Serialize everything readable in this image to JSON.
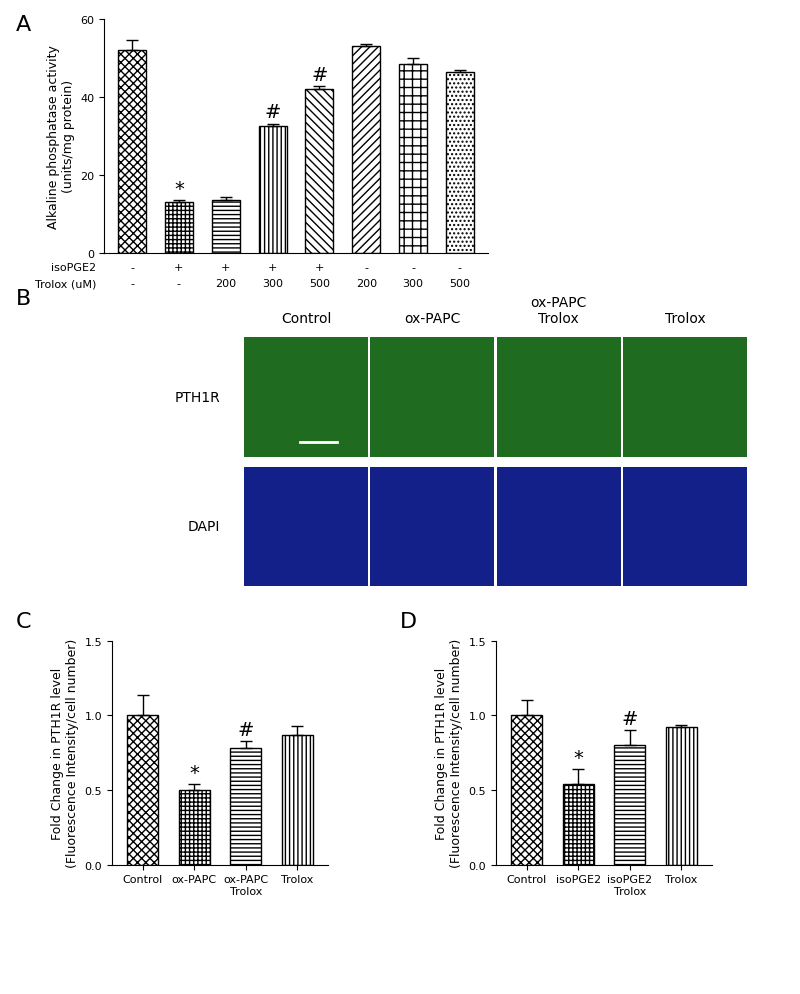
{
  "chart_data": [
    {
      "type": "bar",
      "title": "A",
      "y_label": "Alkaline phosphatase activity\n(units/mg protein)",
      "categories": [
        null,
        null,
        null,
        null,
        null,
        null,
        null,
        null
      ],
      "values": [
        52,
        13,
        13.5,
        32.5,
        42,
        53,
        48.5,
        46.5
      ],
      "errors": [
        2.5,
        0.5,
        0.8,
        0.6,
        0.8,
        0.5,
        1.5,
        0.4
      ],
      "significance": [
        null,
        "*",
        null,
        "#",
        "#",
        null,
        null,
        null
      ],
      "x_table": [
        {
          "label": "isoPGE2",
          "values": [
            "-",
            "+",
            "+",
            "+",
            "+",
            "-",
            "-",
            "-"
          ]
        },
        {
          "label": "Trolox (uM)",
          "values": [
            "-",
            "-",
            "200",
            "300",
            "500",
            "200",
            "300",
            "500"
          ]
        }
      ],
      "color": "#ffffff",
      "ylim": [
        0,
        60
      ],
      "yticks": [
        0,
        20,
        40,
        60
      ]
    },
    {
      "type": "bar",
      "title": "C",
      "y_label": "Fold Change in PTH1R level\n(Fluorescence Intensity/cell number)",
      "categories": [
        "Control",
        "ox-PAPC",
        "ox-PAPC\nTrolox",
        "Trolox"
      ],
      "values": [
        1.0,
        0.5,
        0.78,
        0.87
      ],
      "errors": [
        0.14,
        0.04,
        0.05,
        0.06
      ],
      "significance": [
        null,
        "*",
        "#",
        null
      ],
      "color": "#ffffff",
      "ylim": [
        0.0,
        1.5
      ],
      "yticks": [
        0.0,
        0.5,
        1.0,
        1.5
      ]
    },
    {
      "type": "bar",
      "title": "D",
      "y_label": "Fold Change in PTH1R level\n(Fluorescence Intensity/cell number)",
      "categories": [
        "Control",
        "isoPGE2",
        "isoPGE2\nTrolox",
        "Trolox"
      ],
      "values": [
        1.0,
        0.54,
        0.8,
        0.92
      ],
      "errors": [
        0.1,
        0.1,
        0.1,
        0.015
      ],
      "significance": [
        null,
        "*",
        "#",
        null
      ],
      "color": "#ffffff",
      "ylim": [
        0.0,
        1.5
      ],
      "yticks": [
        0.0,
        0.5,
        1.0,
        1.5
      ]
    }
  ],
  "image_panel": {
    "title": "B",
    "columns": [
      "Control",
      "ox-PAPC",
      "ox-PAPC\nTrolox",
      "Trolox"
    ],
    "rows": [
      {
        "label": "PTH1R",
        "color": "#1f6b1f"
      },
      {
        "label": "DAPI",
        "color": "#13208a"
      }
    ]
  }
}
